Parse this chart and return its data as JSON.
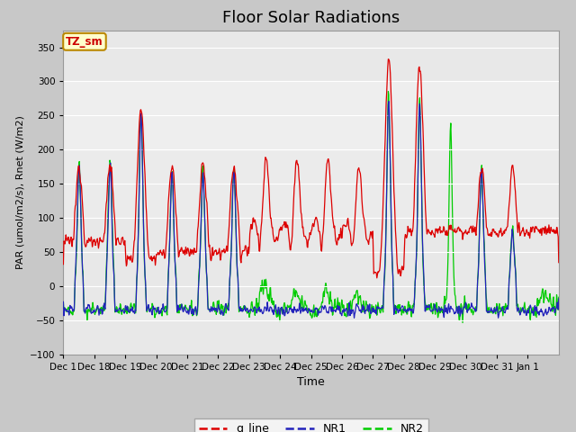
{
  "title": "Floor Solar Radiations",
  "xlabel": "Time",
  "ylabel": "PAR (umol/m2/s), Rnet (W/m2)",
  "ylim": [
    -100,
    375
  ],
  "yticks": [
    -100,
    -50,
    0,
    50,
    100,
    150,
    200,
    250,
    300,
    350
  ],
  "fig_bg": "#c8c8c8",
  "plot_bg": "#e8e8e8",
  "line_colors": {
    "q_line": "#dd0000",
    "NR1": "#2222bb",
    "NR2": "#00cc00"
  },
  "line_widths": {
    "q_line": 0.9,
    "NR1": 0.9,
    "NR2": 0.9
  },
  "tz_label": "TZ_sm",
  "tz_bg": "#ffffcc",
  "tz_border": "#bb8800",
  "tz_text_color": "#cc0000",
  "grid_color": "#ffffff",
  "title_fontsize": 13,
  "xtick_labels": [
    "Dec 1",
    "Dec 18",
    "Dec 19",
    "Dec 20",
    "Dec 21",
    "Dec 22",
    "Dec 23",
    "Dec 24",
    "Dec 25",
    "Dec 26",
    "Dec 27",
    "Dec 28",
    "Dec 29",
    "Dec 30",
    "Dec 31",
    "Jan 1"
  ]
}
